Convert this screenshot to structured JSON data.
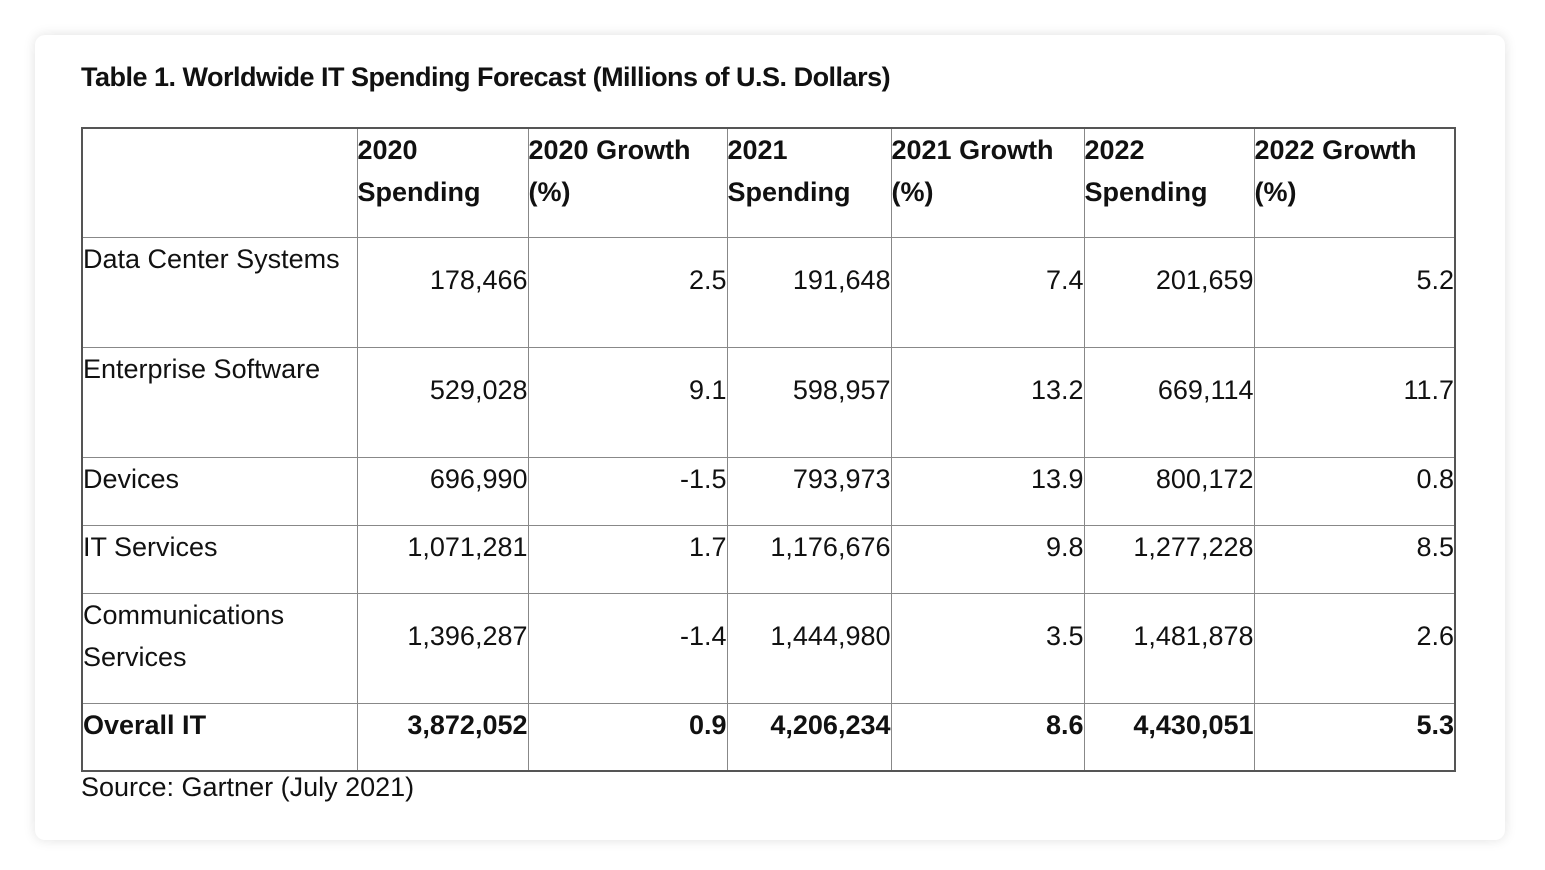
{
  "title": "Table 1. Worldwide IT Spending Forecast (Millions of U.S. Dollars)",
  "table": {
    "headers": [
      "",
      "2020 Spending",
      "2020 Growth (%)",
      "2021 Spending",
      "2021 Growth (%)",
      "2022 Spending",
      "2022 Growth (%)"
    ],
    "rows": [
      [
        "Data Center Systems",
        "178,466",
        "2.5",
        "191,648",
        "7.4",
        "201,659",
        "5.2"
      ],
      [
        "Enterprise Software",
        "529,028",
        "9.1",
        "598,957",
        "13.2",
        "669,114",
        "11.7"
      ],
      [
        "Devices",
        "696,990",
        "-1.5",
        "793,973",
        "13.9",
        "800,172",
        "0.8"
      ],
      [
        "IT Services",
        "1,071,281",
        "1.7",
        "1,176,676",
        "9.8",
        "1,277,228",
        "8.5"
      ],
      [
        "Communications Services",
        "1,396,287",
        "-1.4",
        "1,444,980",
        "3.5",
        "1,481,878",
        "2.6"
      ],
      [
        "Overall IT",
        "3,872,052",
        "0.9",
        "4,206,234",
        "8.6",
        "4,430,051",
        "5.3"
      ]
    ]
  },
  "source": "Source: Gartner (July 2021)"
}
